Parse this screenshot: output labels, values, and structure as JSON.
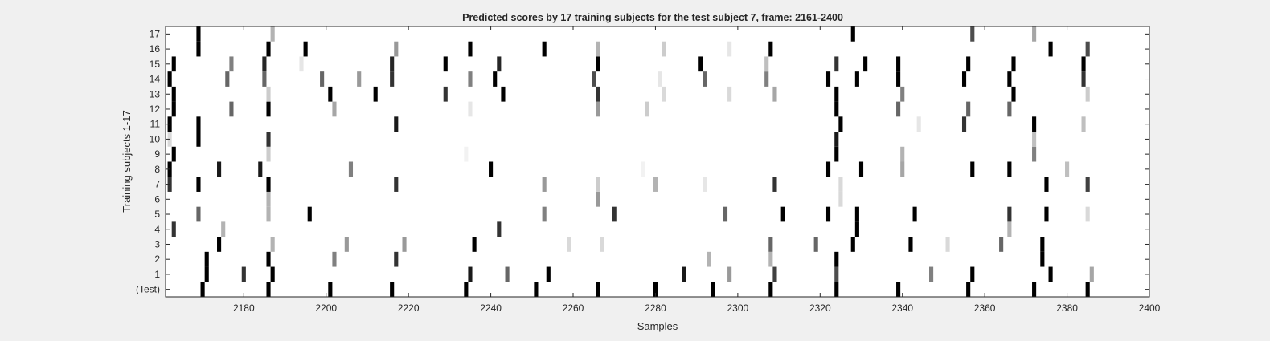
{
  "chart_data": {
    "type": "heatmap",
    "title": "Predicted scores by 17 training subjects for the test subject 7, frame: 2161-2400",
    "xlabel": "Samples",
    "ylabel": "Training subjects 1-17",
    "xlim": [
      2161,
      2400
    ],
    "xticks": [
      2180,
      2200,
      2220,
      2240,
      2260,
      2280,
      2300,
      2320,
      2340,
      2360,
      2380,
      2400
    ],
    "rows": [
      "(Test)",
      "1",
      "2",
      "3",
      "4",
      "5",
      "6",
      "7",
      "8",
      "9",
      "10",
      "11",
      "12",
      "13",
      "14",
      "15",
      "16",
      "17"
    ],
    "colormap": "gray-inverted",
    "cell_width_samples": 1,
    "marks": [
      {
        "row": "(Test)",
        "points": [
          [
            2170,
            1
          ],
          [
            2186,
            1
          ],
          [
            2201,
            1
          ],
          [
            2216,
            1
          ],
          [
            2234,
            1
          ],
          [
            2251,
            1
          ],
          [
            2266,
            1
          ],
          [
            2280,
            1
          ],
          [
            2294,
            1
          ],
          [
            2308,
            1
          ],
          [
            2324,
            1
          ],
          [
            2339,
            1
          ],
          [
            2356,
            1
          ],
          [
            2372,
            1
          ],
          [
            2385,
            1
          ]
        ]
      },
      {
        "row": "1",
        "points": [
          [
            2171,
            1
          ],
          [
            2180,
            0.8
          ],
          [
            2187,
            1
          ],
          [
            2235,
            0.9
          ],
          [
            2244,
            0.6
          ],
          [
            2254,
            1
          ],
          [
            2287,
            0.9
          ],
          [
            2298,
            0.4
          ],
          [
            2309,
            0.75
          ],
          [
            2324,
            0.7
          ],
          [
            2347,
            0.5
          ],
          [
            2357,
            1
          ],
          [
            2376,
            1
          ],
          [
            2386,
            0.35
          ]
        ]
      },
      {
        "row": "2",
        "points": [
          [
            2171,
            1
          ],
          [
            2186,
            1
          ],
          [
            2202,
            0.5
          ],
          [
            2217,
            0.8
          ],
          [
            2293,
            0.3
          ],
          [
            2308,
            0.3
          ],
          [
            2324,
            1
          ],
          [
            2374,
            1
          ]
        ]
      },
      {
        "row": "3",
        "points": [
          [
            2174,
            1
          ],
          [
            2187,
            0.3
          ],
          [
            2205,
            0.4
          ],
          [
            2219,
            0.4
          ],
          [
            2236,
            1
          ],
          [
            2259,
            0.15
          ],
          [
            2267,
            0.15
          ],
          [
            2308,
            0.6
          ],
          [
            2319,
            0.6
          ],
          [
            2328,
            1
          ],
          [
            2342,
            1
          ],
          [
            2351,
            0.15
          ],
          [
            2364,
            0.6
          ],
          [
            2374,
            1
          ]
        ]
      },
      {
        "row": "4",
        "points": [
          [
            2163,
            0.8
          ],
          [
            2175,
            0.3
          ],
          [
            2242,
            0.8
          ],
          [
            2329,
            1
          ],
          [
            2366,
            0.3
          ]
        ]
      },
      {
        "row": "5",
        "points": [
          [
            2169,
            0.6
          ],
          [
            2186,
            0.3
          ],
          [
            2196,
            1
          ],
          [
            2253,
            0.5
          ],
          [
            2270,
            0.8
          ],
          [
            2297,
            0.6
          ],
          [
            2311,
            1
          ],
          [
            2322,
            1
          ],
          [
            2329,
            1
          ],
          [
            2343,
            1
          ],
          [
            2366,
            0.8
          ],
          [
            2375,
            1
          ],
          [
            2385,
            0.15
          ]
        ]
      },
      {
        "row": "6",
        "points": [
          [
            2186,
            0.3
          ],
          [
            2266,
            0.4
          ],
          [
            2325,
            0.15
          ]
        ]
      },
      {
        "row": "7",
        "points": [
          [
            2162,
            0.8
          ],
          [
            2169,
            1
          ],
          [
            2186,
            1
          ],
          [
            2217,
            0.8
          ],
          [
            2253,
            0.4
          ],
          [
            2266,
            0.2
          ],
          [
            2280,
            0.3
          ],
          [
            2292,
            0.1
          ],
          [
            2309,
            0.8
          ],
          [
            2325,
            0.15
          ],
          [
            2375,
            1
          ],
          [
            2385,
            0.75
          ]
        ]
      },
      {
        "row": "8",
        "points": [
          [
            2162,
            1
          ],
          [
            2174,
            0.9
          ],
          [
            2184,
            0.9
          ],
          [
            2206,
            0.5
          ],
          [
            2240,
            1
          ],
          [
            2277,
            0.05
          ],
          [
            2322,
            1
          ],
          [
            2330,
            1
          ],
          [
            2340,
            0.35
          ],
          [
            2357,
            1
          ],
          [
            2366,
            1
          ],
          [
            2380,
            0.25
          ]
        ]
      },
      {
        "row": "9",
        "points": [
          [
            2163,
            1
          ],
          [
            2186,
            0.2
          ],
          [
            2234,
            0.05
          ],
          [
            2324,
            1
          ],
          [
            2340,
            0.3
          ],
          [
            2372,
            0.5
          ]
        ]
      },
      {
        "row": "10",
        "points": [
          [
            2162,
            0.15
          ],
          [
            2169,
            1
          ],
          [
            2186,
            0.8
          ],
          [
            2324,
            0.9
          ],
          [
            2372,
            0.25
          ]
        ]
      },
      {
        "row": "11",
        "points": [
          [
            2162,
            1
          ],
          [
            2169,
            1
          ],
          [
            2217,
            0.9
          ],
          [
            2325,
            1
          ],
          [
            2344,
            0.1
          ],
          [
            2355,
            0.8
          ],
          [
            2372,
            1
          ],
          [
            2384,
            0.25
          ]
        ]
      },
      {
        "row": "12",
        "points": [
          [
            2163,
            1
          ],
          [
            2177,
            0.6
          ],
          [
            2186,
            1
          ],
          [
            2202,
            0.35
          ],
          [
            2235,
            0.1
          ],
          [
            2266,
            0.4
          ],
          [
            2278,
            0.2
          ],
          [
            2324,
            1
          ],
          [
            2339,
            0.6
          ],
          [
            2356,
            0.6
          ],
          [
            2366,
            0.6
          ]
        ]
      },
      {
        "row": "13",
        "points": [
          [
            2163,
            1
          ],
          [
            2186,
            0.2
          ],
          [
            2201,
            1
          ],
          [
            2212,
            1
          ],
          [
            2229,
            0.8
          ],
          [
            2243,
            1
          ],
          [
            2266,
            0.8
          ],
          [
            2282,
            0.15
          ],
          [
            2298,
            0.15
          ],
          [
            2309,
            0.35
          ],
          [
            2324,
            1
          ],
          [
            2340,
            0.5
          ],
          [
            2367,
            1
          ],
          [
            2385,
            0.2
          ]
        ]
      },
      {
        "row": "14",
        "points": [
          [
            2162,
            1
          ],
          [
            2176,
            0.6
          ],
          [
            2185,
            0.6
          ],
          [
            2199,
            0.6
          ],
          [
            2208,
            0.4
          ],
          [
            2216,
            0.8
          ],
          [
            2235,
            0.5
          ],
          [
            2241,
            1
          ],
          [
            2265,
            0.7
          ],
          [
            2281,
            0.1
          ],
          [
            2292,
            0.6
          ],
          [
            2307,
            0.5
          ],
          [
            2322,
            1
          ],
          [
            2329,
            1
          ],
          [
            2339,
            1
          ],
          [
            2355,
            1
          ],
          [
            2366,
            1
          ],
          [
            2384,
            0.8
          ]
        ]
      },
      {
        "row": "15",
        "points": [
          [
            2163,
            1
          ],
          [
            2177,
            0.5
          ],
          [
            2185,
            0.85
          ],
          [
            2194,
            0.1
          ],
          [
            2216,
            0.85
          ],
          [
            2229,
            1
          ],
          [
            2242,
            0.85
          ],
          [
            2266,
            1
          ],
          [
            2291,
            1
          ],
          [
            2307,
            0.25
          ],
          [
            2324,
            0.8
          ],
          [
            2331,
            1
          ],
          [
            2339,
            1
          ],
          [
            2356,
            1
          ],
          [
            2367,
            1
          ],
          [
            2384,
            1
          ]
        ]
      },
      {
        "row": "16",
        "points": [
          [
            2169,
            1
          ],
          [
            2186,
            1
          ],
          [
            2195,
            1
          ],
          [
            2217,
            0.4
          ],
          [
            2235,
            1
          ],
          [
            2253,
            1
          ],
          [
            2266,
            0.3
          ],
          [
            2282,
            0.2
          ],
          [
            2298,
            0.1
          ],
          [
            2308,
            1
          ],
          [
            2376,
            1
          ],
          [
            2385,
            0.7
          ]
        ]
      },
      {
        "row": "17",
        "points": [
          [
            2169,
            1
          ],
          [
            2187,
            0.3
          ],
          [
            2328,
            1
          ],
          [
            2357,
            0.7
          ],
          [
            2372,
            0.35
          ]
        ]
      }
    ]
  }
}
